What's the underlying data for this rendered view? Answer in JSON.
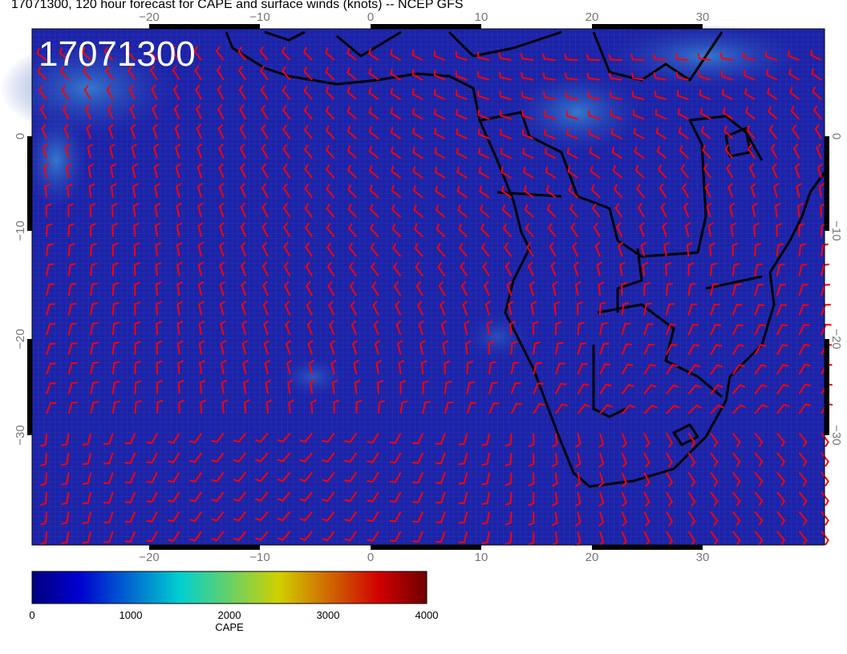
{
  "title": "17071300, 120 hour forecast for CAPE and surface winds (knots) -- NCEP GFS",
  "date_stamp": "17071300",
  "map": {
    "region": "South Atlantic / southern Africa",
    "lon_ticks": [
      "−20",
      "−10",
      "0",
      "10",
      "20",
      "30"
    ],
    "lat_ticks": [
      "0",
      "−10",
      "−20",
      "−30"
    ],
    "field": "CAPE",
    "overlay": "surface wind barbs (knots)",
    "barb_color": "#ff0000",
    "coast_color": "#000000"
  },
  "colorbar": {
    "label": "CAPE",
    "ticks": [
      "0",
      "1000",
      "2000",
      "3000",
      "4000"
    ],
    "range": [
      0,
      4000
    ],
    "colors": [
      "#00007f",
      "#0000d0",
      "#00d0d0",
      "#d0d000",
      "#d00000",
      "#6f0000"
    ]
  }
}
